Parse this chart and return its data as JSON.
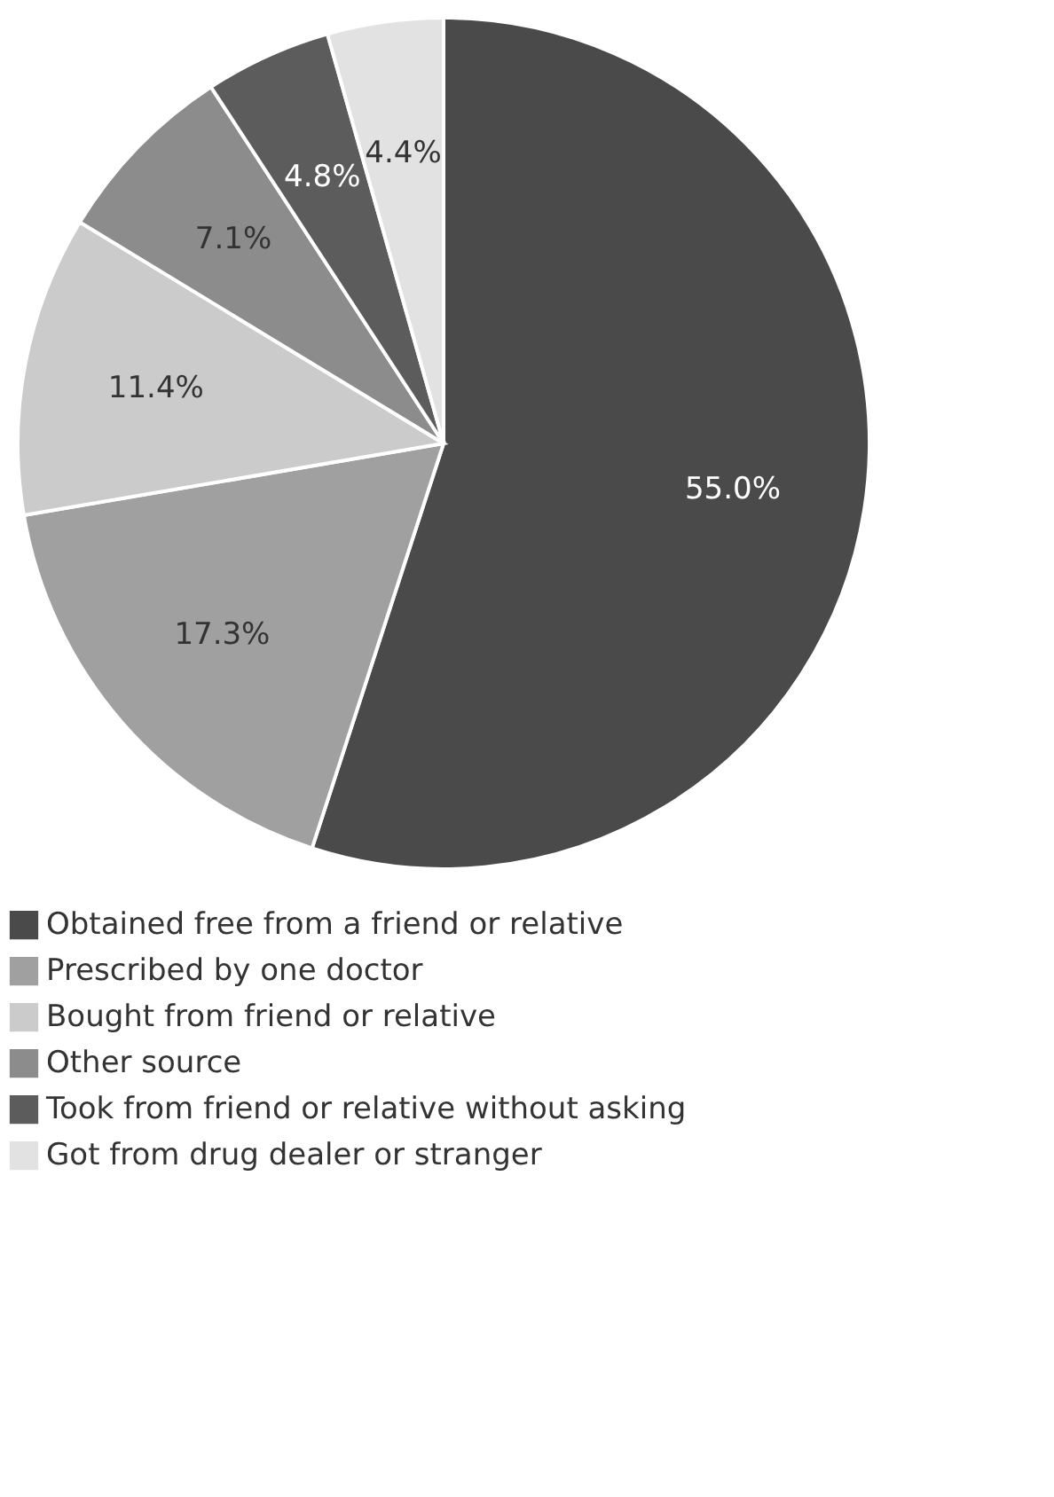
{
  "chart_data": {
    "type": "pie",
    "categories": [
      "Obtained free from a friend or relative",
      "Prescribed by one doctor",
      "Bought from friend or relative",
      "Other source",
      "Took from friend or relative without asking",
      "Got from drug dealer or stranger"
    ],
    "values": [
      55.0,
      17.3,
      11.4,
      7.1,
      4.8,
      4.4
    ],
    "colors": [
      "#4a4a4a",
      "#a0a0a0",
      "#cbcbcb",
      "#8c8c8c",
      "#5c5c5c",
      "#e2e2e2"
    ],
    "value_labels": [
      "55.0%",
      "17.3%",
      "11.4%",
      "7.1%",
      "4.8%",
      "4.4%"
    ],
    "legend": "bottom"
  }
}
